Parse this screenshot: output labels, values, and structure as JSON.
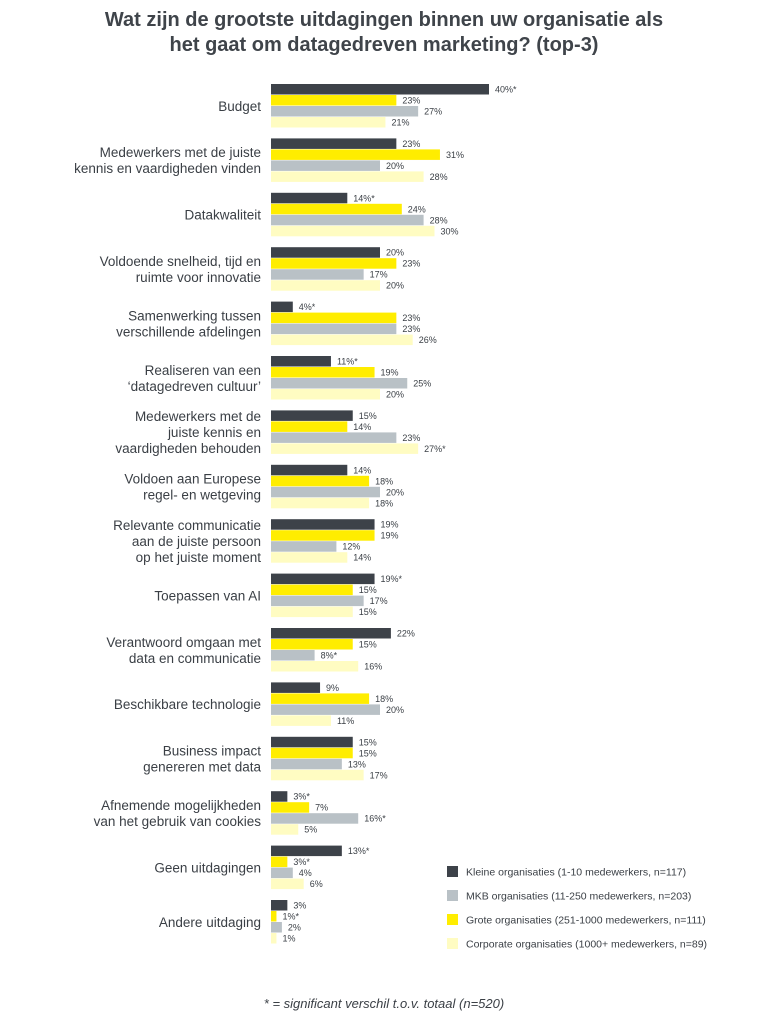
{
  "chart_data": {
    "type": "bar",
    "orientation": "horizontal",
    "title_lines": [
      "Wat zijn de grootste uitdagingen binnen uw organisatie als",
      "het gaat om datagedreven marketing? (top-3)"
    ],
    "categories": [
      [
        "Budget"
      ],
      [
        "Medewerkers met de juiste",
        "kennis en vaardigheden vinden"
      ],
      [
        "Datakwaliteit"
      ],
      [
        "Voldoende snelheid, tijd en",
        "ruimte voor innovatie"
      ],
      [
        "Samenwerking tussen",
        "verschillende afdelingen"
      ],
      [
        "Realiseren van een",
        "‘datagedreven cultuur’"
      ],
      [
        "Medewerkers met de",
        "juiste kennis en",
        "vaardigheden behouden"
      ],
      [
        "Voldoen aan Europese",
        "regel- en wetgeving"
      ],
      [
        "Relevante communicatie",
        "aan de juiste persoon",
        "op het juiste moment"
      ],
      [
        "Toepassen van AI"
      ],
      [
        "Verantwoord omgaan met",
        "data en communicatie"
      ],
      [
        "Beschikbare technologie"
      ],
      [
        "Business impact",
        "genereren met data"
      ],
      [
        "Afnemende mogelijkheden",
        "van het gebruik van cookies"
      ],
      [
        "Geen uitdagingen"
      ],
      [
        "Andere uitdaging"
      ]
    ],
    "series": [
      {
        "name": "Kleine organisaties (1-10 medewerkers, n=117)",
        "color": "#3d4249",
        "values": [
          40,
          23,
          14,
          20,
          4,
          11,
          15,
          14,
          19,
          19,
          22,
          9,
          15,
          3,
          13,
          3
        ],
        "labels": [
          "40%*",
          "23%",
          "14%*",
          "20%",
          "4%*",
          "11%*",
          "15%",
          "14%",
          "19%",
          "19%*",
          "22%",
          "9%",
          "15%",
          "3%*",
          "13%*",
          "3%"
        ]
      },
      {
        "name": "Grote organisaties (251-1000 medewerkers, n=111)",
        "color": "#ffed00",
        "values": [
          23,
          31,
          24,
          23,
          23,
          19,
          14,
          18,
          19,
          15,
          15,
          18,
          15,
          7,
          3,
          1
        ],
        "labels": [
          "23%",
          "31%",
          "24%",
          "23%",
          "23%",
          "19%",
          "14%",
          "18%",
          "19%",
          "15%",
          "15%",
          "18%",
          "15%",
          "7%",
          "3%*",
          "1%*"
        ]
      },
      {
        "name": "MKB organisaties (11-250 medewerkers, n=203)",
        "color": "#b9c1c6",
        "values": [
          27,
          20,
          28,
          17,
          23,
          25,
          23,
          20,
          12,
          17,
          8,
          20,
          13,
          16,
          4,
          2
        ],
        "labels": [
          "27%",
          "20%",
          "28%",
          "17%",
          "23%",
          "25%",
          "23%",
          "20%",
          "12%",
          "17%",
          "8%*",
          "20%",
          "13%",
          "16%*",
          "4%",
          "2%"
        ]
      },
      {
        "name": "Corporate organisaties (1000+ medewerkers, n=89)",
        "color": "#fffcc2",
        "values": [
          21,
          28,
          30,
          20,
          26,
          20,
          27,
          18,
          14,
          15,
          16,
          11,
          17,
          5,
          6,
          1
        ],
        "labels": [
          "21%",
          "28%",
          "30%",
          "20%",
          "26%",
          "20%",
          "27%*",
          "18%",
          "14%",
          "15%",
          "16%",
          "11%",
          "17%",
          "5%",
          "6%",
          "1%"
        ]
      }
    ],
    "legend": {
      "position": "bottom-right",
      "order": [
        0,
        2,
        1,
        3
      ]
    },
    "footnote": "* = significant verschil t.o.v. totaal (n=520)"
  }
}
